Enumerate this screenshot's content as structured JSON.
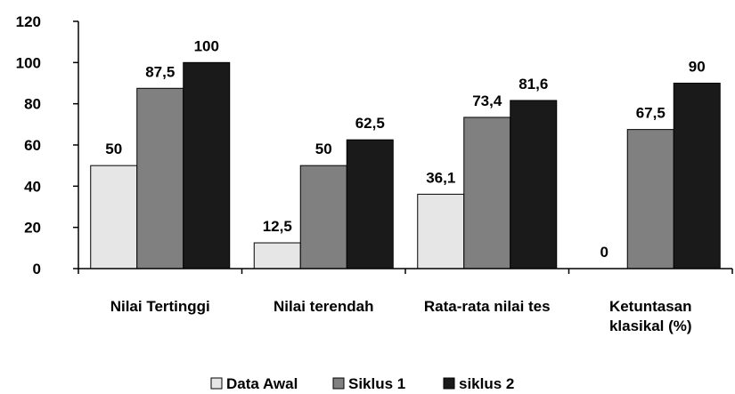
{
  "chart_data": {
    "type": "bar",
    "categories": [
      [
        "Nilai Tertinggi"
      ],
      [
        "Nilai terendah"
      ],
      [
        "Rata-rata nilai tes"
      ],
      [
        "Ketuntasan",
        "klasikal (%)"
      ]
    ],
    "series": [
      {
        "name": "Data Awal",
        "values": [
          50,
          12.5,
          36.1,
          0
        ],
        "labels": [
          "50",
          "12,5",
          "36,1",
          "0"
        ],
        "color": "#e6e6e6"
      },
      {
        "name": "Siklus 1",
        "values": [
          87.5,
          50,
          73.4,
          67.5
        ],
        "labels": [
          "87,5",
          "50",
          "73,4",
          "67,5"
        ],
        "color": "#808080"
      },
      {
        "name": "siklus 2",
        "values": [
          100,
          62.5,
          81.6,
          90
        ],
        "labels": [
          "100",
          "62,5",
          "81,6",
          "90"
        ],
        "color": "#1a1a1a"
      }
    ],
    "ylim": [
      0,
      120
    ],
    "yticks": [
      "0",
      "20",
      "40",
      "60",
      "80",
      "100",
      "120"
    ],
    "legend_position": "bottom",
    "grid": false
  }
}
